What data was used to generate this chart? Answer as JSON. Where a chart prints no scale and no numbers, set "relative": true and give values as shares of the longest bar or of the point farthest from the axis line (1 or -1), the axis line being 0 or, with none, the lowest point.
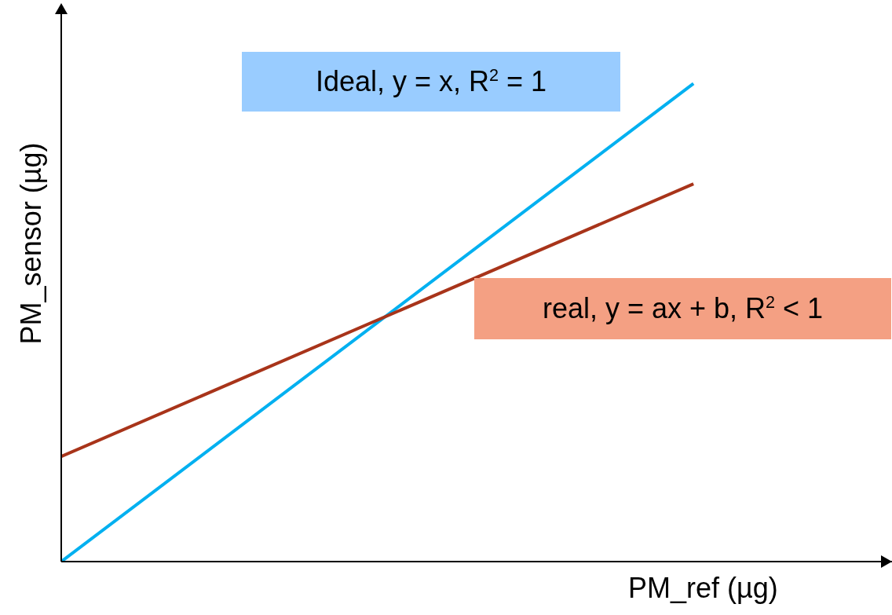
{
  "chart_data": {
    "type": "line",
    "relative": true,
    "categories": [
      null,
      null
    ],
    "xlabel": "PM_ref (µg)",
    "ylabel": "PM_sensor (µg)",
    "marker": "none",
    "series": [
      {
        "name": "Ideal, y = x, R$^{2}$ = 1",
        "color": "#00b0f0",
        "values": [
          0,
          1
        ]
      },
      {
        "name": "real, y = ax + b, R$^{2}$ < 1",
        "color": "#a8341a",
        "values": [
          0.22,
          0.79
        ]
      }
    ]
  }
}
